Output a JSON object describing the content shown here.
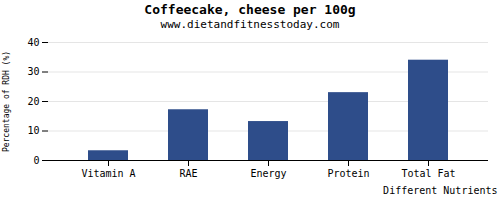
{
  "chart_data": {
    "type": "bar",
    "title": "Coffeecake, cheese per 100g",
    "subtitle": "www.dietandfitnesstoday.com",
    "xlabel": "Different Nutrients",
    "ylabel": "Percentage of RDH (%)",
    "categories": [
      "Vitamin A",
      "RAE",
      "Energy",
      "Protein",
      "Total Fat"
    ],
    "values": [
      3.3,
      17.2,
      13.2,
      23.0,
      34.0
    ],
    "color": "#2e4d8a",
    "ylim": [
      0,
      40
    ],
    "yticks": [
      0,
      10,
      20,
      30,
      40
    ],
    "grid": true
  }
}
